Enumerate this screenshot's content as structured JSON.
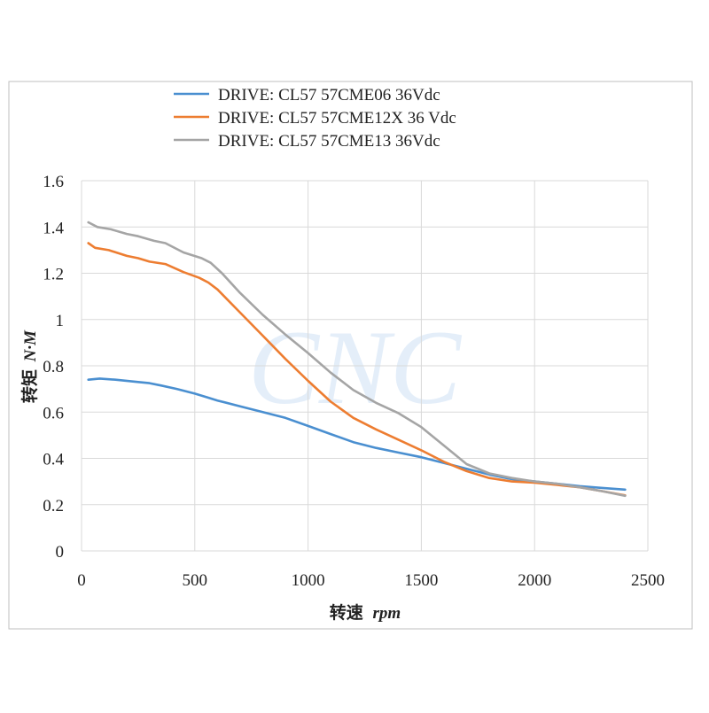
{
  "chart_data": {
    "type": "line",
    "xlabel": "转速 rpm",
    "xlabel_cn": "转速",
    "xlabel_unit": "rpm",
    "ylabel": "转矩 N·M",
    "ylabel_cn": "转矩",
    "ylabel_unit": "N·M",
    "xlim": [
      0,
      2500
    ],
    "ylim": [
      0,
      1.6
    ],
    "x_ticks": [
      0,
      500,
      1000,
      1500,
      2000,
      2500
    ],
    "x_tick_labels": [
      "0",
      "500",
      "1000",
      "1500",
      "2000",
      "2500"
    ],
    "y_ticks": [
      0,
      0.2,
      0.4,
      0.6,
      0.8,
      1.0,
      1.2,
      1.4,
      1.6
    ],
    "y_tick_labels": [
      "0",
      "0.2",
      "0.4",
      "0.6",
      "0.8",
      "1",
      "1.2",
      "1.4",
      "1.6"
    ],
    "grid": true,
    "legend_position": "top",
    "watermark": "CNC",
    "series": [
      {
        "name": "DRIVE: CL57 57CME06 36Vdc",
        "color": "#4a8fd0",
        "x": [
          30,
          80,
          150,
          250,
          300,
          350,
          420,
          500,
          550,
          600,
          700,
          800,
          900,
          1000,
          1100,
          1200,
          1300,
          1400,
          1500,
          1600,
          1700,
          1800,
          1900,
          2000,
          2100,
          2200,
          2300,
          2400
        ],
        "y": [
          0.74,
          0.745,
          0.74,
          0.73,
          0.725,
          0.715,
          0.7,
          0.68,
          0.665,
          0.65,
          0.625,
          0.6,
          0.575,
          0.54,
          0.505,
          0.47,
          0.445,
          0.425,
          0.405,
          0.38,
          0.355,
          0.33,
          0.31,
          0.3,
          0.29,
          0.28,
          0.272,
          0.265
        ]
      },
      {
        "name": "DRIVE: CL57 57CME12X 36 Vdc",
        "color": "#ed7d31",
        "x": [
          30,
          60,
          120,
          200,
          250,
          300,
          370,
          450,
          520,
          560,
          600,
          700,
          800,
          900,
          1000,
          1100,
          1200,
          1300,
          1400,
          1500,
          1600,
          1700,
          1800,
          1900,
          2000,
          2100,
          2200,
          2300,
          2400
        ],
        "y": [
          1.33,
          1.31,
          1.3,
          1.275,
          1.265,
          1.25,
          1.24,
          1.205,
          1.18,
          1.16,
          1.13,
          1.03,
          0.93,
          0.83,
          0.735,
          0.645,
          0.575,
          0.525,
          0.48,
          0.435,
          0.385,
          0.345,
          0.315,
          0.3,
          0.295,
          0.285,
          0.275,
          0.258,
          0.24
        ]
      },
      {
        "name": "DRIVE: CL57 57CME13 36Vdc",
        "color": "#a5a5a5",
        "x": [
          30,
          70,
          130,
          200,
          250,
          320,
          370,
          450,
          530,
          570,
          620,
          700,
          800,
          900,
          1000,
          1100,
          1200,
          1300,
          1400,
          1500,
          1600,
          1700,
          1800,
          1900,
          2000,
          2100,
          2200,
          2300,
          2400
        ],
        "y": [
          1.42,
          1.4,
          1.39,
          1.37,
          1.36,
          1.34,
          1.33,
          1.29,
          1.265,
          1.245,
          1.2,
          1.115,
          1.02,
          0.935,
          0.855,
          0.77,
          0.695,
          0.64,
          0.595,
          0.535,
          0.455,
          0.375,
          0.335,
          0.315,
          0.3,
          0.29,
          0.275,
          0.258,
          0.238
        ]
      }
    ]
  }
}
